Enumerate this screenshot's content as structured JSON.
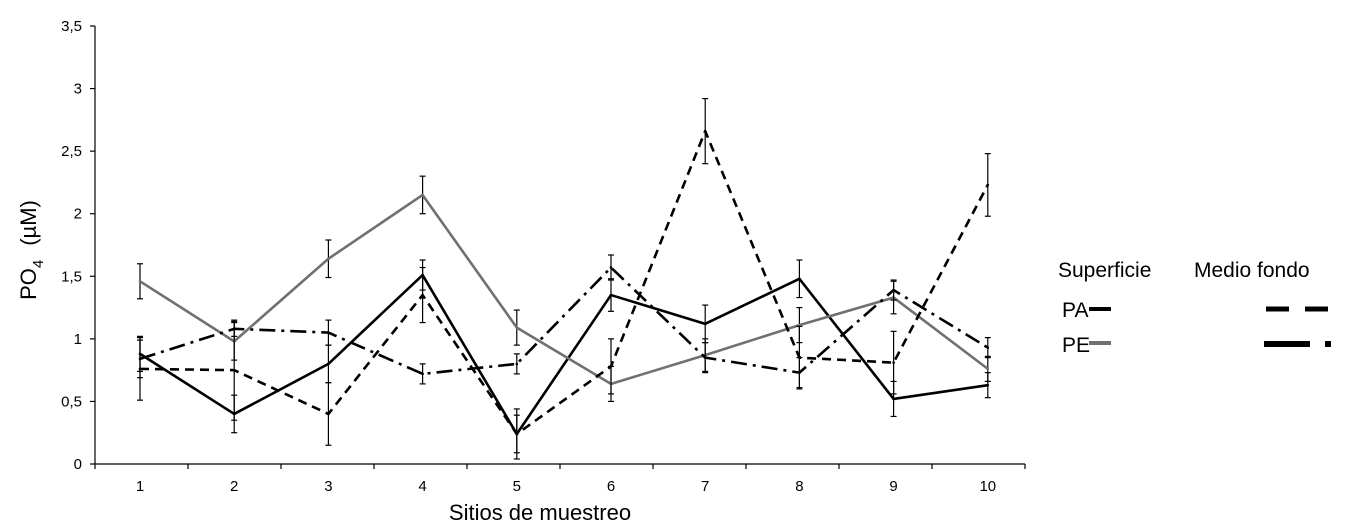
{
  "chart_data": {
    "type": "line",
    "xlabel": "Sitios de muestreo",
    "ylabel": "PO",
    "ylabel_sub": "4",
    "ylabel_unit": "(µM)",
    "categories": [
      "1",
      "2",
      "3",
      "4",
      "5",
      "6",
      "7",
      "8",
      "9",
      "10"
    ],
    "yticks": [
      "0",
      "0,5",
      "1",
      "1,5",
      "2",
      "2,5",
      "3",
      "3,5"
    ],
    "ylim": [
      0,
      3.5
    ],
    "grid": false,
    "legend": {
      "position": "right",
      "col_headers": [
        "Superficie",
        "Medio fondo"
      ],
      "row_labels": [
        "PA",
        "PE"
      ]
    },
    "series": [
      {
        "id": "pa_sup",
        "style": "solid",
        "color": "#000000",
        "values": [
          0.88,
          0.4,
          0.8,
          1.51,
          0.24,
          1.35,
          1.12,
          1.48,
          0.52,
          0.63
        ],
        "errors": [
          0.14,
          0.15,
          0.15,
          0.12,
          0.15,
          0.13,
          0.15,
          0.15,
          0.14,
          0.1
        ]
      },
      {
        "id": "pe_sup",
        "style": "solid",
        "color": "#707070",
        "values": [
          1.46,
          0.98,
          1.64,
          2.15,
          1.09,
          0.64,
          0.87,
          1.11,
          1.33,
          0.76
        ],
        "errors": [
          0.14,
          0.15,
          0.15,
          0.15,
          0.14,
          0.14,
          0.13,
          0.14,
          0.13,
          0.1
        ]
      },
      {
        "id": "pa_med",
        "style": "dashed",
        "color": "#000000",
        "values": [
          0.76,
          0.75,
          0.4,
          1.35,
          0.24,
          0.78,
          2.66,
          0.85,
          0.81,
          2.23
        ],
        "errors": [
          0.25,
          0.4,
          0.25,
          0.22,
          0.2,
          0.22,
          0.26,
          0.25,
          0.25,
          0.25
        ]
      },
      {
        "id": "pe_med",
        "style": "dashdot",
        "color": "#000000",
        "values": [
          0.84,
          1.08,
          1.05,
          0.72,
          0.8,
          1.57,
          0.85,
          0.73,
          1.39,
          0.93
        ],
        "errors": [
          0.15,
          0.06,
          0.1,
          0.08,
          0.08,
          0.1,
          0.12,
          0.12,
          0.08,
          0.08
        ]
      }
    ]
  }
}
